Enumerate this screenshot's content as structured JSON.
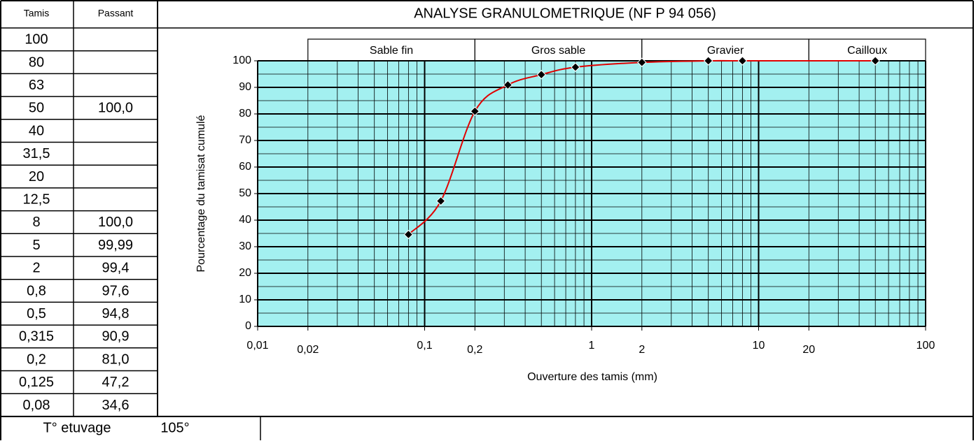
{
  "table": {
    "headers": [
      "Tamis",
      "Passant"
    ],
    "rows": [
      [
        "100",
        null
      ],
      [
        "80",
        null
      ],
      [
        "63",
        null
      ],
      [
        "50",
        "100,0"
      ],
      [
        "40",
        null
      ],
      [
        "31,5",
        null
      ],
      [
        "20",
        null
      ],
      [
        "12,5",
        null
      ],
      [
        "8",
        "100,0"
      ],
      [
        "5",
        "99,99"
      ],
      [
        "2",
        "99,4"
      ],
      [
        "0,8",
        "97,6"
      ],
      [
        "0,5",
        "94,8"
      ],
      [
        "0,315",
        "90,9"
      ],
      [
        "0,2",
        "81,0"
      ],
      [
        "0,125",
        "47,2"
      ],
      [
        "0,08",
        "34,6"
      ]
    ],
    "footer": {
      "label": "T° etuvage",
      "value": "105°"
    }
  },
  "chart_data": {
    "type": "scatter-line",
    "title": "ANALYSE GRANULOMETRIQUE  (NF P 94 056)",
    "x_label": "Ouverture des tamis (mm)",
    "y_label": "Pourcentage du tamisat cumulé",
    "log_x": true,
    "grid": true,
    "background": "#a3f0f0",
    "line_color": "#e00000",
    "marker_color": "#000000",
    "x": [
      0.08,
      0.125,
      0.2,
      0.315,
      0.5,
      0.8,
      2,
      5,
      8,
      50
    ],
    "values": [
      34.6,
      47.2,
      81,
      90.9,
      94.8,
      97.6,
      99.4,
      99.99,
      100,
      100
    ],
    "xlim": [
      0.01,
      100
    ],
    "xticks": [
      {
        "value": 0.01,
        "label": "0,01"
      },
      {
        "value": 0.02,
        "label": "0,02"
      },
      {
        "value": 0.1,
        "label": "0,1"
      },
      {
        "value": 0.2,
        "label": "0,2"
      },
      1,
      2,
      10,
      20,
      100
    ],
    "ylim": [
      0,
      100
    ],
    "yticks": [
      0,
      10,
      20,
      30,
      40,
      50,
      60,
      70,
      80,
      90,
      100
    ],
    "zones": [
      {
        "label": "Sable fin",
        "range": [
          0.02,
          0.2
        ]
      },
      {
        "label": "Gros sable",
        "range": [
          0.2,
          2
        ]
      },
      {
        "label": "Gravier",
        "range": [
          2,
          20
        ]
      },
      {
        "label": "Cailloux",
        "range": [
          20,
          100
        ]
      }
    ]
  }
}
